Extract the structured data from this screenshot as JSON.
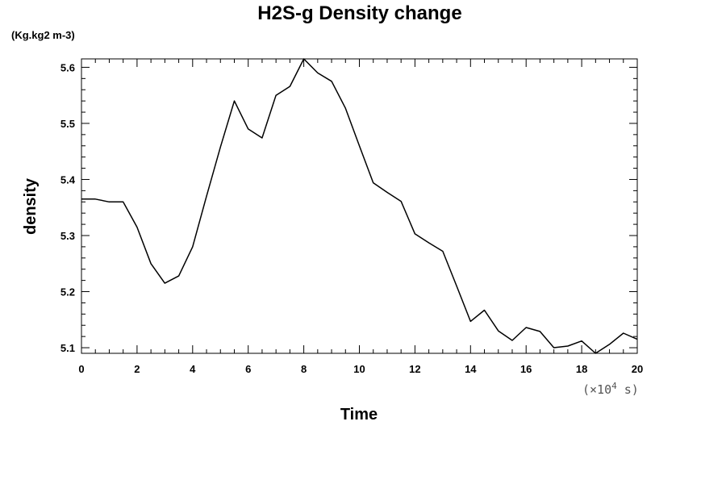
{
  "chart_data": {
    "type": "line",
    "title": "H2S-g Density change",
    "unit_label": "(Kg.kg2 m-3)",
    "xlabel": "Time",
    "ylabel": "density",
    "x_scale_note_prefix": "(×10",
    "x_scale_note_exp": "4",
    "x_scale_note_suffix": " s)",
    "xlim": [
      0,
      20
    ],
    "ylim": [
      5.09,
      5.615
    ],
    "x_ticks": [
      "0",
      "2",
      "4",
      "6",
      "8",
      "10",
      "12",
      "14",
      "16",
      "18",
      "20"
    ],
    "y_ticks": [
      "5.1",
      "5.2",
      "5.3",
      "5.4",
      "5.5",
      "5.6"
    ],
    "grid": false,
    "series": [
      {
        "x": [
          0,
          0.5,
          1,
          1.5,
          2,
          2.5,
          3,
          3.5,
          4,
          4.5,
          5,
          5.5,
          6,
          6.5,
          7,
          7.5,
          8,
          8.5,
          9,
          9.5,
          10,
          10.5,
          11,
          11.5,
          12,
          12.5,
          13,
          13.5,
          14,
          14.5,
          15,
          15.5,
          16,
          16.5,
          17,
          17.5,
          18,
          18.5,
          19,
          19.5,
          20
        ],
        "y": [
          5.365,
          5.365,
          5.36,
          5.36,
          5.315,
          5.25,
          5.215,
          5.228,
          5.28,
          5.37,
          5.458,
          5.54,
          5.49,
          5.474,
          5.55,
          5.566,
          5.615,
          5.59,
          5.575,
          5.527,
          5.46,
          5.394,
          5.377,
          5.361,
          5.303,
          5.287,
          5.272,
          5.21,
          5.147,
          5.167,
          5.13,
          5.113,
          5.136,
          5.129,
          5.1,
          5.103,
          5.112,
          5.09,
          5.106,
          5.126,
          5.115
        ]
      }
    ]
  }
}
